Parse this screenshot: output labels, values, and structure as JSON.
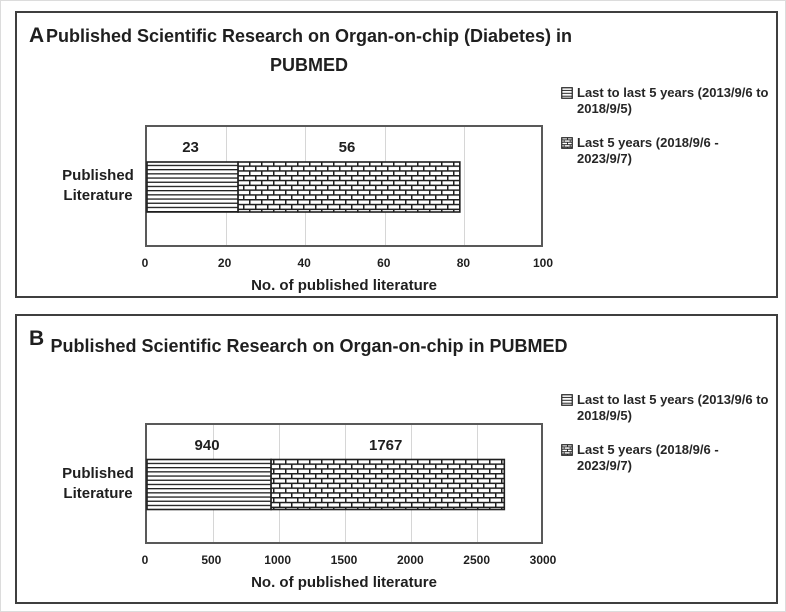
{
  "style_colors": {
    "pattern_ink": "#1f1f1f",
    "panel_border": "#3f3f3f",
    "plot_border": "#595959",
    "gridline": "#d6d6d6",
    "background": "#ffffff"
  },
  "chart_data": [
    {
      "type": "bar",
      "orientation": "horizontal",
      "stacked": true,
      "panel_label": "A",
      "title": "Published Scientific Research on Organ-on-chip (Diabetes) in PUBMED",
      "categories": [
        "Published Literature"
      ],
      "series": [
        {
          "name": "Last to last 5 years (2013/9/6 to 2018/9/5)",
          "values": [
            23
          ],
          "pattern": "horizontal-lines"
        },
        {
          "name": "Last 5 years (2018/9/6 - 2023/9/7)",
          "values": [
            56
          ],
          "pattern": "bricks"
        }
      ],
      "xlabel": "No. of published literature",
      "xlim": [
        0,
        100
      ],
      "xticks": [
        0,
        20,
        40,
        60,
        80,
        100
      ],
      "grid": true,
      "legend_position": "right"
    },
    {
      "type": "bar",
      "orientation": "horizontal",
      "stacked": true,
      "panel_label": "B",
      "title": "Published Scientific Research on Organ-on-chip in PUBMED",
      "categories": [
        "Published Literature"
      ],
      "series": [
        {
          "name": "Last to last 5 years (2013/9/6 to 2018/9/5)",
          "values": [
            940
          ],
          "pattern": "horizontal-lines"
        },
        {
          "name": "Last 5 years (2018/9/6 - 2023/9/7)",
          "values": [
            1767
          ],
          "pattern": "bricks"
        }
      ],
      "xlabel": "No. of published literature",
      "xlim": [
        0,
        3000
      ],
      "xticks": [
        0,
        500,
        1000,
        1500,
        2000,
        2500,
        3000
      ],
      "grid": true,
      "legend_position": "right"
    }
  ]
}
